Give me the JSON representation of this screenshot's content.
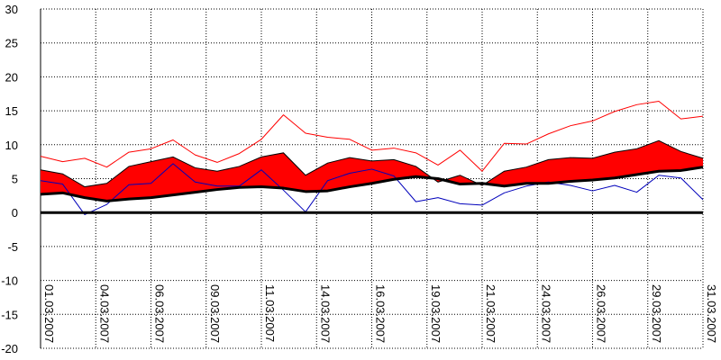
{
  "chart_data": {
    "type": "line",
    "ylim": [
      -20,
      30
    ],
    "y_ticks": [
      30,
      25,
      20,
      15,
      10,
      5,
      0,
      -5,
      -10,
      -15,
      -20
    ],
    "grid": true,
    "x_tick_labels": [
      "01.03.2007",
      "04.03.2007",
      "06.03.2007",
      "09.03.2007",
      "11.03.2007",
      "14.03.2007",
      "16.03.2007",
      "19.03.2007",
      "21.03.2007",
      "24.03.2007",
      "26.03.2007",
      "29.03.2007",
      "31.03.2007"
    ],
    "x_tick_days": [
      1,
      3.5,
      6,
      8.5,
      11,
      13.5,
      16,
      18.5,
      21,
      23.5,
      26,
      28.5,
      31
    ],
    "days": [
      1,
      2,
      3,
      4,
      5,
      6,
      7,
      8,
      9,
      10,
      11,
      12,
      13,
      14,
      15,
      16,
      17,
      18,
      19,
      20,
      21,
      22,
      23,
      24,
      25,
      26,
      27,
      28,
      29,
      30,
      31
    ],
    "band_upper": [
      6.3,
      5.7,
      3.8,
      4.3,
      6.8,
      7.5,
      8.2,
      6.6,
      6.1,
      6.8,
      8.2,
      8.8,
      5.5,
      7.3,
      8.1,
      7.6,
      7.8,
      6.8,
      4.5,
      5.5,
      4.0,
      6.1,
      6.7,
      7.8,
      8.1,
      8.0,
      8.9,
      9.4,
      10.6,
      9.0,
      8.0
    ],
    "band_lower": [
      2.7,
      2.9,
      2.2,
      1.7,
      2.0,
      2.2,
      2.6,
      3.0,
      3.4,
      3.7,
      3.8,
      3.6,
      3.1,
      3.2,
      3.8,
      4.3,
      4.9,
      5.3,
      5.0,
      4.2,
      4.3,
      3.9,
      4.3,
      4.3,
      4.6,
      4.8,
      5.1,
      5.6,
      6.1,
      6.2,
      6.7
    ],
    "series": [
      {
        "color": "#ff0000",
        "role": "thin-red",
        "values": [
          8.3,
          7.5,
          8.0,
          6.7,
          8.9,
          9.4,
          10.7,
          8.5,
          7.4,
          8.7,
          10.8,
          14.4,
          11.7,
          11.1,
          10.8,
          9.2,
          9.5,
          8.8,
          7.0,
          9.2,
          6.1,
          10.2,
          10.1,
          11.6,
          12.8,
          13.5,
          14.9,
          15.9,
          16.4,
          13.8,
          14.2
        ]
      },
      {
        "color": "#0000bb",
        "role": "thin-blue",
        "values": [
          4.7,
          4.2,
          -0.3,
          1.2,
          4.1,
          4.3,
          7.2,
          4.5,
          3.9,
          3.9,
          6.3,
          3.3,
          0.1,
          4.7,
          5.8,
          6.4,
          5.4,
          1.6,
          2.2,
          1.3,
          1.1,
          2.9,
          3.9,
          4.5,
          4.0,
          3.2,
          4.0,
          3.0,
          5.5,
          5.1,
          1.9
        ]
      },
      {
        "color": "#000000",
        "role": "thick-black",
        "values": [
          2.7,
          2.9,
          2.2,
          1.7,
          2.0,
          2.2,
          2.6,
          3.0,
          3.4,
          3.7,
          3.8,
          3.6,
          3.1,
          3.2,
          3.8,
          4.3,
          4.9,
          5.3,
          5.0,
          4.2,
          4.3,
          3.9,
          4.3,
          4.3,
          4.6,
          4.8,
          5.1,
          5.6,
          6.1,
          6.2,
          6.7
        ]
      }
    ],
    "band_color": "#ff0000"
  }
}
